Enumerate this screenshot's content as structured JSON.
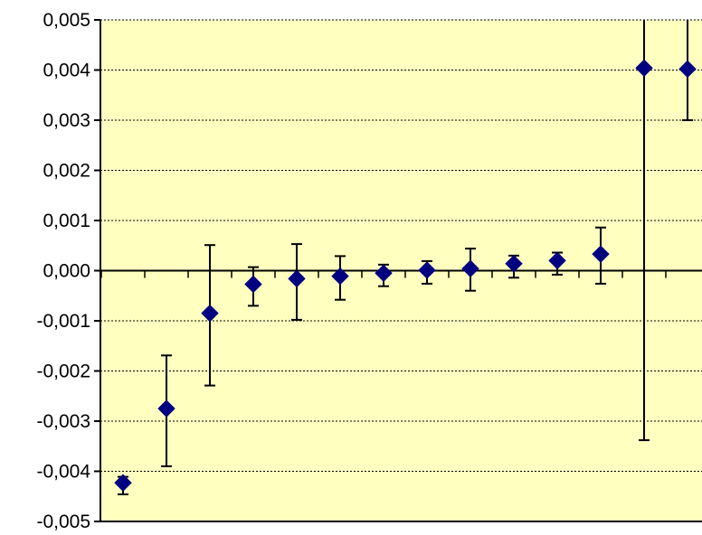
{
  "chart_data": {
    "type": "scatter",
    "title": "",
    "xlabel": "",
    "ylabel": "",
    "ylim": [
      -0.005,
      0.005
    ],
    "y_ticks": [
      0.005,
      0.004,
      0.003,
      0.002,
      0.001,
      0.0,
      -0.001,
      -0.002,
      -0.003,
      -0.004,
      -0.005
    ],
    "y_tick_labels": [
      "0,005",
      "0,004",
      "0,003",
      "0,002",
      "0,001",
      "0,000",
      "-0,001",
      "-0,002",
      "-0,003",
      "-0,004",
      "-0,005"
    ],
    "grid": true,
    "legend": "none",
    "n_categories": 14,
    "series": [
      {
        "marker": "diamond",
        "points": [
          {
            "x": 1,
            "y": -0.00423,
            "y_low": -0.00446,
            "y_high": -0.00411
          },
          {
            "x": 2,
            "y": -0.00275,
            "y_low": -0.0039,
            "y_high": -0.00169
          },
          {
            "x": 3,
            "y": -0.00085,
            "y_low": -0.00229,
            "y_high": 0.00051
          },
          {
            "x": 4,
            "y": -0.00027,
            "y_low": -0.0007,
            "y_high": 7e-05
          },
          {
            "x": 5,
            "y": -0.00016,
            "y_low": -0.00098,
            "y_high": 0.00053
          },
          {
            "x": 6,
            "y": -0.00011,
            "y_low": -0.00058,
            "y_high": 0.00029
          },
          {
            "x": 7,
            "y": -5e-05,
            "y_low": -0.00031,
            "y_high": 0.00012
          },
          {
            "x": 8,
            "y": 1e-05,
            "y_low": -0.00026,
            "y_high": 0.00019
          },
          {
            "x": 9,
            "y": 4e-05,
            "y_low": -0.0004,
            "y_high": 0.00044
          },
          {
            "x": 10,
            "y": 0.00014,
            "y_low": -0.00014,
            "y_high": 0.0003
          },
          {
            "x": 11,
            "y": 0.0002,
            "y_low": -8e-05,
            "y_high": 0.00036
          },
          {
            "x": 12,
            "y": 0.00033,
            "y_low": -0.00026,
            "y_high": 0.00086
          },
          {
            "x": 13,
            "y": 0.00404,
            "y_low": -0.00338,
            "y_high": 0.005
          },
          {
            "x": 14,
            "y": 0.00402,
            "y_low": 0.003,
            "y_high": 0.005
          }
        ]
      }
    ]
  },
  "colors": {
    "plot_background": "#ffffc0",
    "marker": "#000080",
    "error_bar": "#000000",
    "gridline": "#000000",
    "axis": "#000000"
  }
}
